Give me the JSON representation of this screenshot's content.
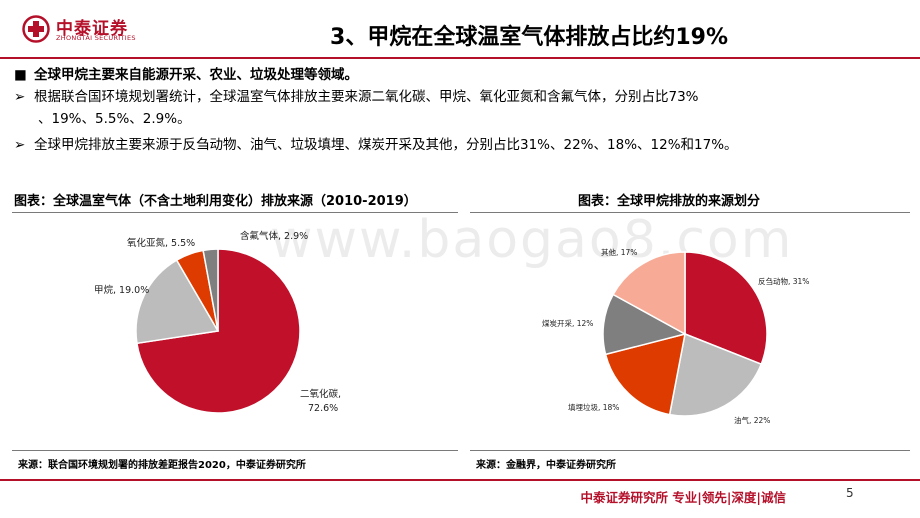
{
  "brand": {
    "name_cn": "中泰证券",
    "name_en": "ZHONGTAI SECURITIES",
    "color": "#b5102a"
  },
  "title": "3、甲烷在全球温室气体排放占比约19%",
  "bullets": {
    "b1": "全球甲烷主要来自能源开采、农业、垃圾处理等领域。",
    "b2": "根据联合国环境规划署统计，全球温室气体排放主要来源二氧化碳、甲烷、氧化亚氮和含氟气体，分别占比73%",
    "b2_cont": "、19%、5.5%、2.9%。",
    "b3": "全球甲烷排放主要来源于反刍动物、油气、垃圾填埋、煤炭开采及其他，分别占比31%、22%、18%、12%和17%。",
    "marker_square": "■",
    "marker_arrow": "➢"
  },
  "figure1": {
    "title": "图表：全球温室气体（不含土地利用变化）排放来源（2010-2019）",
    "source": "来源：联合国环境规划署的排放差距报告2020，中泰证券研究所"
  },
  "figure2": {
    "title": "图表：全球甲烷排放的来源划分",
    "source": "来源：金融界，中泰证券研究所"
  },
  "chart_data": [
    {
      "type": "pie",
      "title": "图表：全球温室气体（不含土地利用变化）排放来源（2010-2019）",
      "start_angle_deg": 0,
      "slices": [
        {
          "name": "二氧化碳",
          "value": 72.6,
          "label_line1": "二氧化碳,",
          "label_line2": "72.6%",
          "color": "#c0102a"
        },
        {
          "name": "甲烷",
          "value": 19.0,
          "label": "甲烷, 19.0%",
          "color": "#bcbcbc"
        },
        {
          "name": "氧化亚氮",
          "value": 5.5,
          "label": "氧化亚氮, 5.5%",
          "color": "#de3b00"
        },
        {
          "name": "含氟气体",
          "value": 2.9,
          "label": "含氟气体, 2.9%",
          "color": "#7f7f7f"
        }
      ]
    },
    {
      "type": "pie",
      "title": "图表：全球甲烷排放的来源划分",
      "start_angle_deg": 0,
      "slices": [
        {
          "name": "反刍动物",
          "value": 31,
          "label": "反刍动物, 31%",
          "color": "#c0102a"
        },
        {
          "name": "油气",
          "value": 22,
          "label": "油气, 22%",
          "color": "#bcbcbc"
        },
        {
          "name": "填埋垃圾",
          "value": 18,
          "label": "填埋垃圾, 18%",
          "color": "#de3b00"
        },
        {
          "name": "煤炭开采",
          "value": 12,
          "label": "煤炭开采, 12%",
          "color": "#7f7f7f"
        },
        {
          "name": "其他",
          "value": 17,
          "label": "其他, 17%",
          "color": "#f7ab96"
        }
      ]
    }
  ],
  "watermark": "www.baogao8.com",
  "footer": "中泰证券研究所 专业|领先|深度|诚信",
  "page_number": "5"
}
